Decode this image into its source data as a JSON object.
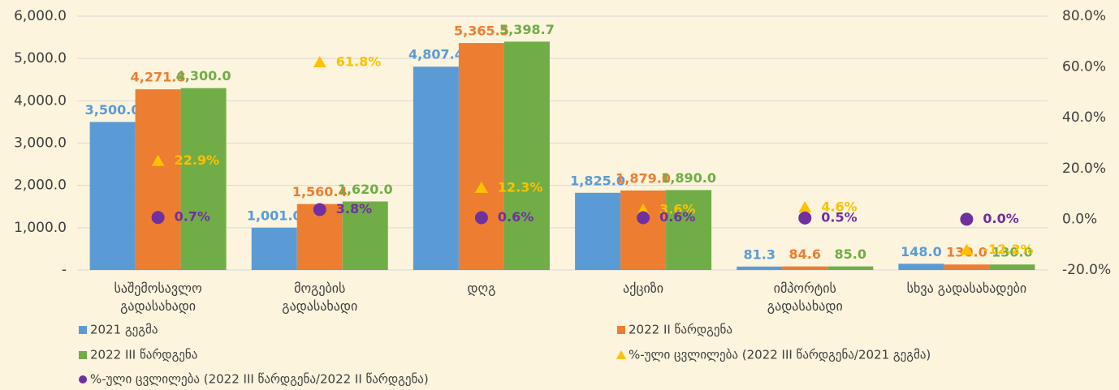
{
  "chart_data": {
    "type": "bar",
    "categories": [
      "საშემოსავლო\nგადასახადი",
      "მოგების\nგადასახადი",
      "დღგ",
      "აქციზი",
      "იმპორტის\nგადასახადი",
      "სხვა გადასახადები"
    ],
    "series": [
      {
        "name": "2021  გეგმა",
        "color": "#5b9bd5",
        "values": [
          3500,
          1001,
          4807.4,
          1825,
          81.3,
          148
        ],
        "value_labels": [
          "3,500.0",
          "1,001.0",
          "4,807.4",
          "1,825.0",
          "81.3",
          "148.0"
        ]
      },
      {
        "name": "2022 II წარდგენა",
        "color": "#ed7d31",
        "values": [
          4271.8,
          1560.4,
          5365.5,
          1879,
          84.6,
          130
        ],
        "value_labels": [
          "4,271.8",
          "1,560.4",
          "5,365.5",
          "1,879.0",
          "84.6",
          "130.0"
        ]
      },
      {
        "name": "2022 III წარდგენა",
        "color": "#70ad47",
        "values": [
          4300,
          1620,
          5398.7,
          1890,
          85,
          130
        ],
        "value_labels": [
          "4,300.0",
          "1,620.0",
          "5,398.7",
          "1,890.0",
          "85.0",
          "130.0"
        ]
      },
      {
        "name": "%-ული ცვლილება (2022 III წარდგენა/2021 გეგმა)",
        "type": "scatter",
        "marker": "triangle",
        "axis": "y2",
        "color": "#ffc000",
        "values": [
          22.9,
          61.8,
          12.3,
          3.6,
          4.6,
          -12.2
        ],
        "value_labels": [
          "22.9%",
          "61.8%",
          "12.3%",
          "3.6%",
          "4.6%",
          "-12.2%"
        ]
      },
      {
        "name": "%-ული ცვლილება (2022 III წარდგენა/2022 II წარდგენა)",
        "type": "scatter",
        "marker": "circle",
        "axis": "y2",
        "color": "#7030a0",
        "values": [
          0.7,
          3.8,
          0.6,
          0.6,
          0.5,
          0.0
        ],
        "value_labels": [
          "0.7%",
          "3.8%",
          "0.6%",
          "0.6%",
          "0.5%",
          "0.0%"
        ]
      }
    ],
    "ylim": [
      0,
      6000
    ],
    "yticks": [
      {
        "value": 0,
        "label": "-"
      },
      {
        "value": 1000,
        "label": "1,000.0"
      },
      {
        "value": 2000,
        "label": "2,000.0"
      },
      {
        "value": 3000,
        "label": "3,000.0"
      },
      {
        "value": 4000,
        "label": "4,000.0"
      },
      {
        "value": 5000,
        "label": "5,000.0"
      },
      {
        "value": 6000,
        "label": "6,000.0"
      }
    ],
    "y2lim": [
      -20,
      80
    ],
    "y2ticks": [
      {
        "value": -20,
        "label": "-20.0%"
      },
      {
        "value": 0,
        "label": "0.0%"
      },
      {
        "value": 20,
        "label": "20.0%"
      },
      {
        "value": 40,
        "label": "40.0%"
      },
      {
        "value": 60,
        "label": "60.0%"
      },
      {
        "value": 80,
        "label": "80.0%"
      }
    ],
    "grid": true,
    "legend": "bottom"
  }
}
